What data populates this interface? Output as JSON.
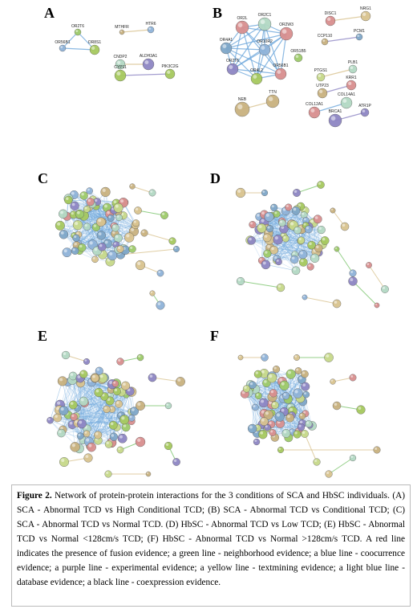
{
  "panels": [
    {
      "letter": "A",
      "nodes": [
        "OR2T6",
        "MTHFR",
        "HTR6",
        "OR56B1",
        "OR8S1",
        "CNDP2",
        "ALDH3A1",
        "PIK3C2G",
        "CYP11"
      ]
    },
    {
      "letter": "B",
      "nodes": [
        "OR2C1",
        "OR2W3",
        "OR2L",
        "OR4A1",
        "OR10R2",
        "OR2T6",
        "OR4L2",
        "OR56B1",
        "OR51B5",
        "DISC1",
        "NRG1",
        "CCP110",
        "PCM1",
        "PTGS1",
        "PLB1",
        "UTP23",
        "KRR1",
        "COL12A1",
        "COL14A1",
        "NEB",
        "TTN",
        "BRCA1",
        "ATR1P"
      ]
    },
    {
      "letter": "C",
      "nodes": []
    },
    {
      "letter": "D",
      "nodes": []
    },
    {
      "letter": "E",
      "nodes": []
    },
    {
      "letter": "F",
      "nodes": []
    }
  ],
  "caption": {
    "label": "Figure 2.",
    "text": "Network of protein-protein interactions for the 3 conditions of SCA and HbSC individuals. (A) SCA - Abnormal TCD vs High Conditional TCD; (B) SCA - Abnormal TCD vs Conditional TCD; (C) SCA - Abnormal TCD vs Normal TCD. (D) HbSC - Abnormal TCD vs Low TCD; (E) HbSC - Abnormal TCD vs Normal <128cm/s TCD; (F) HbSC - Abnormal TCD vs Normal >128cm/s TCD. A red line indicates the presence of fusion evidence; a green line - neighborhood evidence; a blue line - coocurrence evidence; a purple line - experimental evidence; a yellow line - textmining evidence; a light blue line - database evidence; a black line - coexpression evidence."
  }
}
